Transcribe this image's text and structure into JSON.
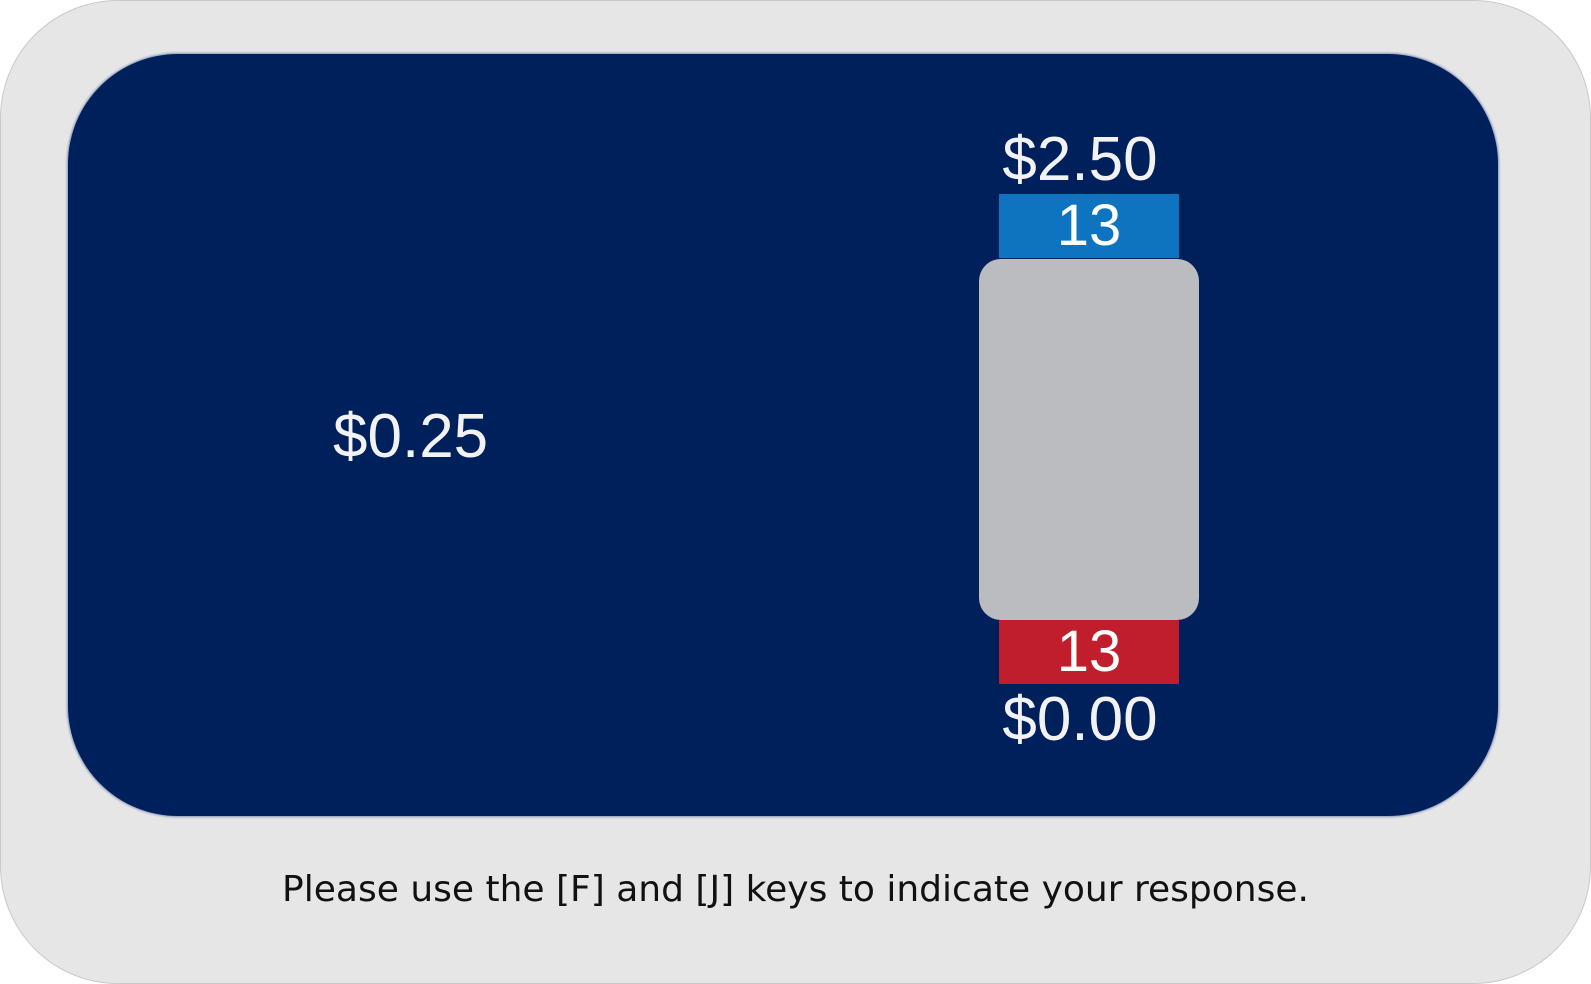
{
  "trial": {
    "sure_option": "$0.25",
    "lottery": {
      "win_amount": "$2.50",
      "win_count": "13",
      "lose_amount": "$0.00",
      "lose_count": "13"
    }
  },
  "instruction": "Please use the [F] and [J] keys to indicate your response.",
  "colors": {
    "frame": "#e7e6e7",
    "screen": "#00205c",
    "win": "#0f74c0",
    "lose": "#c01e2c",
    "ambiguity": "#bbbcbf"
  }
}
